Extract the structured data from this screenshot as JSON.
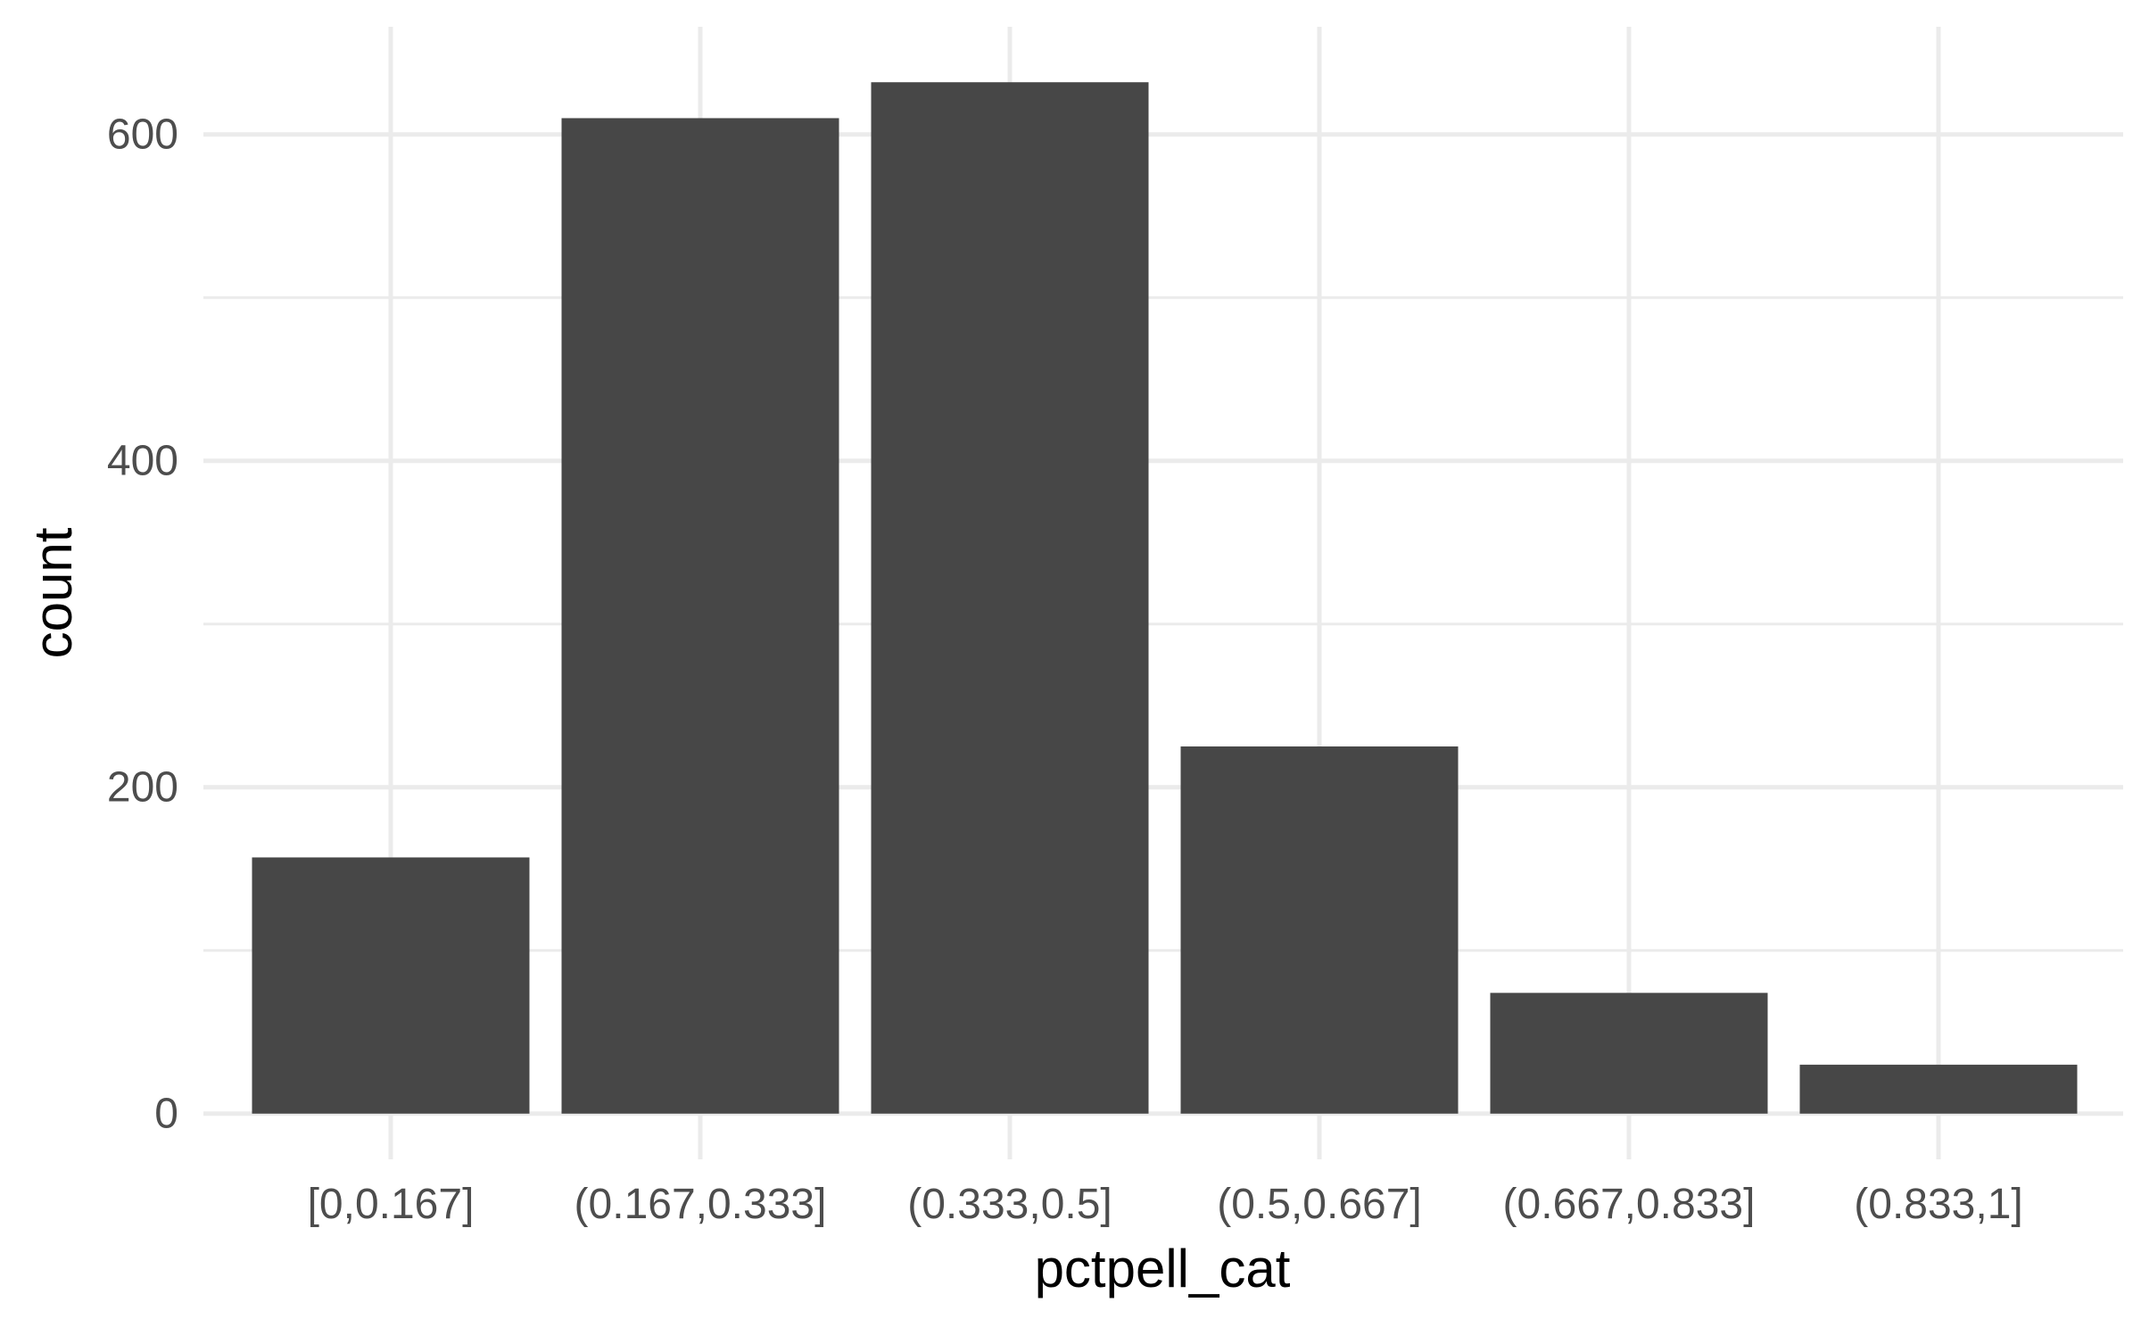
{
  "chart_data": {
    "type": "bar",
    "categories": [
      "[0,0.167]",
      "(0.167,0.333]",
      "(0.333,0.5]",
      "(0.5,0.667]",
      "(0.667,0.833]",
      "(0.833,1]"
    ],
    "values": [
      157,
      610,
      632,
      225,
      74,
      30
    ],
    "title": "",
    "xlabel": "pctpell_cat",
    "ylabel": "count",
    "ylim": [
      -28,
      666
    ],
    "yticks": [
      0,
      200,
      400,
      600
    ],
    "yticklabels": [
      "0",
      "200",
      "400",
      "600"
    ],
    "y_minor_ticks": [
      100,
      300,
      500
    ],
    "grid": true,
    "legend": "none",
    "colors": {
      "bar": "#474747",
      "grid": "#ebebeb",
      "tick_text": "#4d4d4d",
      "title_text": "#000000",
      "background": "#ffffff"
    }
  }
}
